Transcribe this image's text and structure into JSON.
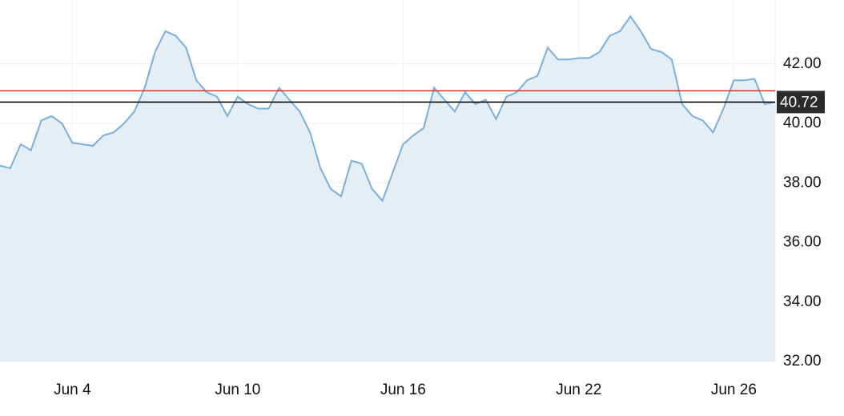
{
  "chart_data": {
    "type": "area",
    "categories": [
      null,
      null,
      null,
      null,
      null,
      null,
      null,
      "Jun 4",
      null,
      null,
      null,
      null,
      null,
      null,
      null,
      null,
      null,
      null,
      null,
      null,
      null,
      null,
      null,
      "Jun 10",
      null,
      null,
      null,
      null,
      null,
      null,
      null,
      null,
      null,
      null,
      null,
      null,
      null,
      null,
      null,
      "Jun 16",
      null,
      null,
      null,
      null,
      null,
      null,
      null,
      null,
      null,
      null,
      null,
      null,
      null,
      null,
      null,
      null,
      "Jun 22",
      null,
      null,
      null,
      null,
      null,
      null,
      null,
      null,
      null,
      null,
      null,
      null,
      null,
      null,
      "Jun 26",
      null,
      null,
      null,
      null
    ],
    "series": [
      {
        "color": "#7aaedb",
        "fill": "#e5eef5",
        "values": [
          38.58,
          38.5,
          39.3,
          39.1,
          40.1,
          40.25,
          40.0,
          39.35,
          39.3,
          39.25,
          39.6,
          39.7,
          40.0,
          40.4,
          41.2,
          42.4,
          43.1,
          42.95,
          42.55,
          41.45,
          41.05,
          40.9,
          40.25,
          40.9,
          40.65,
          40.5,
          40.5,
          41.2,
          40.8,
          40.4,
          39.7,
          38.5,
          37.8,
          37.55,
          38.75,
          38.65,
          37.8,
          37.4,
          38.35,
          39.3,
          39.6,
          39.85,
          41.2,
          40.8,
          40.4,
          41.05,
          40.65,
          40.8,
          40.15,
          40.9,
          41.05,
          41.45,
          41.6,
          42.55,
          42.15,
          42.15,
          42.2,
          42.2,
          42.4,
          42.95,
          43.1,
          43.6,
          43.1,
          42.5,
          42.4,
          42.15,
          40.65,
          40.25,
          40.1,
          39.7,
          40.5,
          41.45,
          41.45,
          41.5,
          40.65,
          40.72
        ]
      }
    ],
    "ylim": [
      32,
      44.15
    ],
    "yticks": [
      {
        "value": 32,
        "label": "32.00"
      },
      {
        "value": 34,
        "label": "34.00"
      },
      {
        "value": 36,
        "label": "36.00"
      },
      {
        "value": 38,
        "label": "38.00"
      },
      {
        "value": 40,
        "label": "40.00"
      },
      {
        "value": 42,
        "label": "42.00"
      }
    ],
    "reference_lines": [
      {
        "value": 41.1,
        "color": "#d9342b"
      }
    ],
    "last_price": {
      "value": 40.72,
      "color": "#000000",
      "label_fill": "#2b2b2b"
    },
    "grid": true,
    "y_axis_side": "right"
  }
}
